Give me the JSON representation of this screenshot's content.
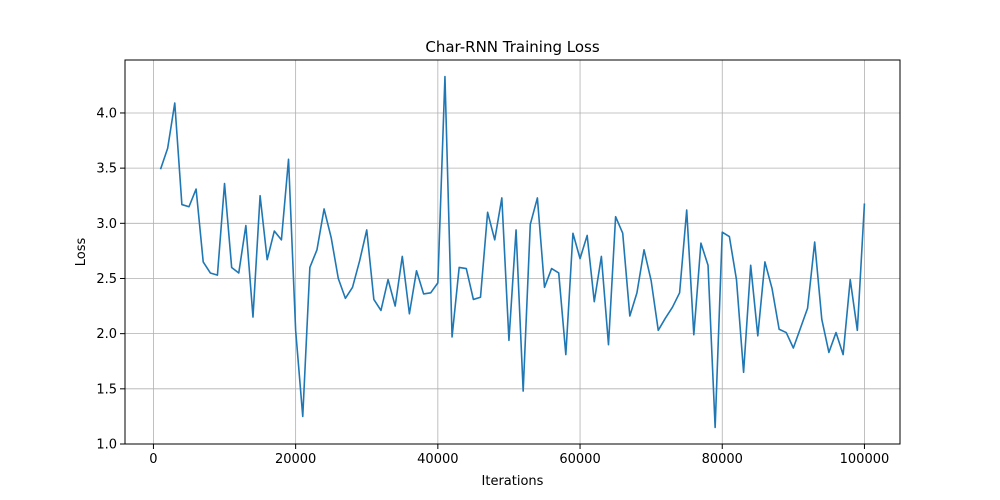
{
  "chart_data": {
    "type": "line",
    "title": "Char-RNN Training Loss",
    "xlabel": "Iterations",
    "ylabel": "Loss",
    "xlim": [
      -4000,
      105000
    ],
    "ylim": [
      1.0,
      4.48
    ],
    "xticks": [
      0,
      20000,
      40000,
      60000,
      80000,
      100000
    ],
    "yticks": [
      1.0,
      1.5,
      2.0,
      2.5,
      3.0,
      3.5,
      4.0
    ],
    "xtick_labels": [
      "0",
      "20000",
      "40000",
      "60000",
      "80000",
      "100000"
    ],
    "ytick_labels": [
      "1.0",
      "1.5",
      "2.0",
      "2.5",
      "3.0",
      "3.5",
      "4.0"
    ],
    "grid": true,
    "line_color": "#1f77b4",
    "series": [
      {
        "x": [
          1000,
          2000,
          3000,
          4000,
          5000,
          6000,
          7000,
          8000,
          9000,
          10000,
          11000,
          12000,
          13000,
          14000,
          15000,
          16000,
          17000,
          18000,
          19000,
          20000,
          21000,
          22000,
          23000,
          24000,
          25000,
          26000,
          27000,
          28000,
          29000,
          30000,
          31000,
          32000,
          33000,
          34000,
          35000,
          36000,
          37000,
          38000,
          39000,
          40000,
          41000,
          42000,
          43000,
          44000,
          45000,
          46000,
          47000,
          48000,
          49000,
          50000,
          51000,
          52000,
          53000,
          54000,
          55000,
          56000,
          57000,
          58000,
          59000,
          60000,
          61000,
          62000,
          63000,
          64000,
          65000,
          66000,
          67000,
          68000,
          69000,
          70000,
          71000,
          72000,
          73000,
          74000,
          75000,
          76000,
          77000,
          78000,
          79000,
          80000,
          81000,
          82000,
          83000,
          84000,
          85000,
          86000,
          87000,
          88000,
          89000,
          90000,
          91000,
          92000,
          93000,
          94000,
          95000,
          96000,
          97000,
          98000,
          99000,
          100000
        ],
        "y": [
          3.49,
          3.68,
          4.09,
          3.17,
          3.15,
          3.31,
          2.65,
          2.55,
          2.53,
          3.36,
          2.6,
          2.55,
          2.98,
          2.15,
          3.25,
          2.67,
          2.93,
          2.85,
          3.58,
          2.03,
          1.25,
          2.6,
          2.76,
          3.13,
          2.87,
          2.5,
          2.32,
          2.42,
          2.66,
          2.94,
          2.31,
          2.21,
          2.49,
          2.25,
          2.7,
          2.18,
          2.57,
          2.36,
          2.37,
          2.46,
          4.33,
          1.97,
          2.6,
          2.59,
          2.31,
          2.33,
          3.1,
          2.85,
          3.23,
          1.94,
          2.94,
          1.48,
          2.99,
          3.23,
          2.42,
          2.59,
          2.55,
          1.81,
          2.91,
          2.68,
          2.89,
          2.29,
          2.7,
          1.9,
          3.06,
          2.91,
          2.16,
          2.37,
          2.76,
          2.48,
          2.03,
          2.14,
          2.24,
          2.37,
          3.12,
          1.99,
          2.82,
          2.62,
          1.15,
          2.92,
          2.88,
          2.49,
          1.65,
          2.62,
          1.98,
          2.65,
          2.41,
          2.04,
          2.01,
          1.87,
          2.05,
          2.23,
          2.83,
          2.13,
          1.83,
          2.01,
          1.81,
          2.49,
          2.03,
          3.18
        ]
      }
    ]
  }
}
